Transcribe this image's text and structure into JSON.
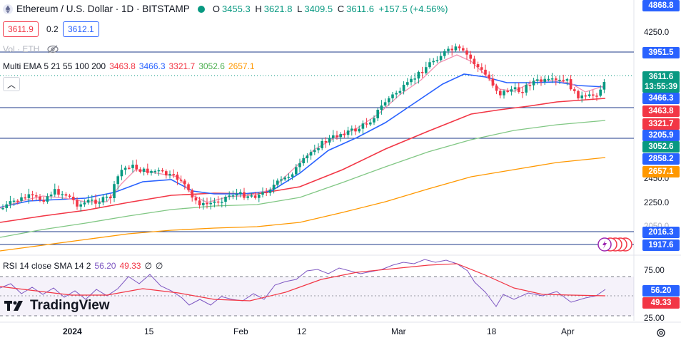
{
  "header": {
    "symbol": "Ethereum / U.S. Dollar · 1D · BITSTAMP",
    "open_key": "O",
    "open": "3455.3",
    "high_key": "H",
    "high": "3621.8",
    "low_key": "L",
    "low": "3409.5",
    "close_key": "C",
    "close": "3611.6",
    "change": "+157.5 (+4.56%)"
  },
  "order": {
    "sell_price": "3611.9",
    "spread": "0.2",
    "buy_price": "3612.1"
  },
  "volume": {
    "label": "Vol · ETH"
  },
  "ema": {
    "label": "Multi EMA 5 21 55 100 200",
    "v5": "3463.8",
    "v21": "3466.3",
    "v55": "3321.7",
    "v100": "3052.6",
    "v200": "2657.1"
  },
  "rsi": {
    "label": "RSI 14 close SMA 14 2",
    "v1": "56.20",
    "v2": "49.33",
    "v3": "∅",
    "v4": "∅"
  },
  "branding": {
    "name": "TradingView"
  },
  "price_axis": {
    "ticks": [
      "4250.0",
      "2450.0",
      "2250.0",
      "2050.0"
    ],
    "labels": [
      {
        "text": "4868.8",
        "color": "#2962ff"
      },
      {
        "text": "3951.5",
        "color": "#2962ff"
      },
      {
        "text": "3611.6",
        "color": "#089981"
      },
      {
        "text": "13:55:39",
        "color": "#089981"
      },
      {
        "text": "3466.3",
        "color": "#2962ff"
      },
      {
        "text": "3463.8",
        "color": "#f23645"
      },
      {
        "text": "3321.7",
        "color": "#f23645"
      },
      {
        "text": "3205.9",
        "color": "#2962ff"
      },
      {
        "text": "3052.6",
        "color": "#089981"
      },
      {
        "text": "2858.2",
        "color": "#2962ff"
      },
      {
        "text": "2657.1",
        "color": "#ff9800"
      },
      {
        "text": "2016.3",
        "color": "#2962ff"
      },
      {
        "text": "1917.6",
        "color": "#2962ff"
      }
    ]
  },
  "rsi_axis": {
    "ticks": [
      "75.00",
      "25.00"
    ],
    "labels": [
      {
        "text": "56.20",
        "color": "#2962ff"
      },
      {
        "text": "49.33",
        "color": "#f23645"
      }
    ]
  },
  "time_axis": {
    "ticks": [
      "2024",
      "15",
      "Feb",
      "12",
      "Mar",
      "18",
      "Apr"
    ]
  },
  "colors": {
    "up": "#089981",
    "down": "#f23645",
    "ema5": "#f23645",
    "ema21": "#2962ff",
    "ema55": "#f23645",
    "ema100": "#4caf50",
    "ema200": "#ff9800",
    "hline": "#1e3a8a",
    "rsi": "#7e57c2",
    "rsi_ma": "#f23645"
  }
}
